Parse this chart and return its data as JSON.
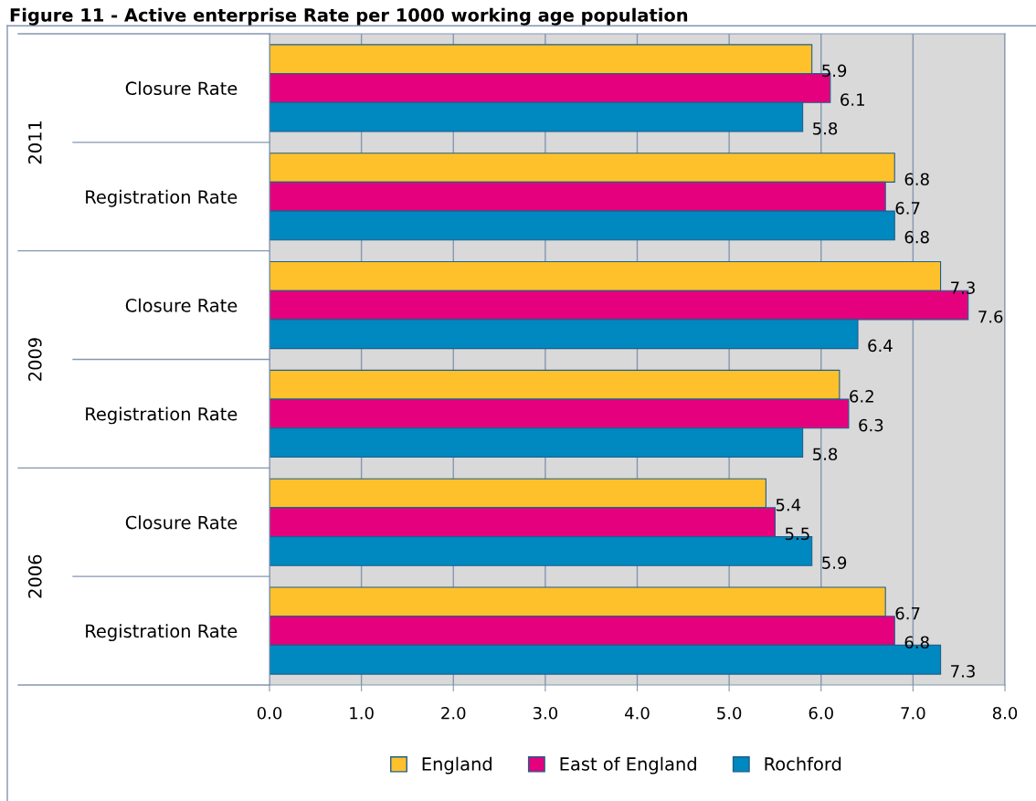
{
  "chart_data": {
    "type": "bar",
    "orientation": "horizontal",
    "title": "Figure 11 - Active enterprise Rate per 1000 working age population",
    "categories": [
      "Closure Rate",
      "Registration Rate",
      "Closure Rate",
      "Registration Rate",
      "Closure Rate",
      "Registration Rate"
    ],
    "annotations": [
      "2011",
      "2009",
      "2006"
    ],
    "series": [
      {
        "name": "England",
        "color": "#ffc12b",
        "values": [
          5.9,
          6.8,
          7.3,
          6.2,
          5.4,
          6.7
        ]
      },
      {
        "name": "East of England",
        "color": "#e5007d",
        "values": [
          6.1,
          6.7,
          7.6,
          6.3,
          5.5,
          6.8
        ]
      },
      {
        "name": "Rochford",
        "color": "#0088c0",
        "values": [
          5.8,
          6.8,
          6.4,
          5.8,
          5.9,
          7.3
        ]
      }
    ],
    "xlim": [
      0,
      8
    ],
    "xticks": [
      {
        "value": 0,
        "label": "0.0"
      },
      {
        "value": 1,
        "label": "1.0"
      },
      {
        "value": 2,
        "label": "2.0"
      },
      {
        "value": 3,
        "label": "3.0"
      },
      {
        "value": 4,
        "label": "4.0"
      },
      {
        "value": 5,
        "label": "5.0"
      },
      {
        "value": 6,
        "label": "6.0"
      },
      {
        "value": 7,
        "label": "7.0"
      },
      {
        "value": 8,
        "label": "8.0"
      }
    ],
    "grid": "x",
    "legend": "bottom",
    "data_labels": true
  }
}
